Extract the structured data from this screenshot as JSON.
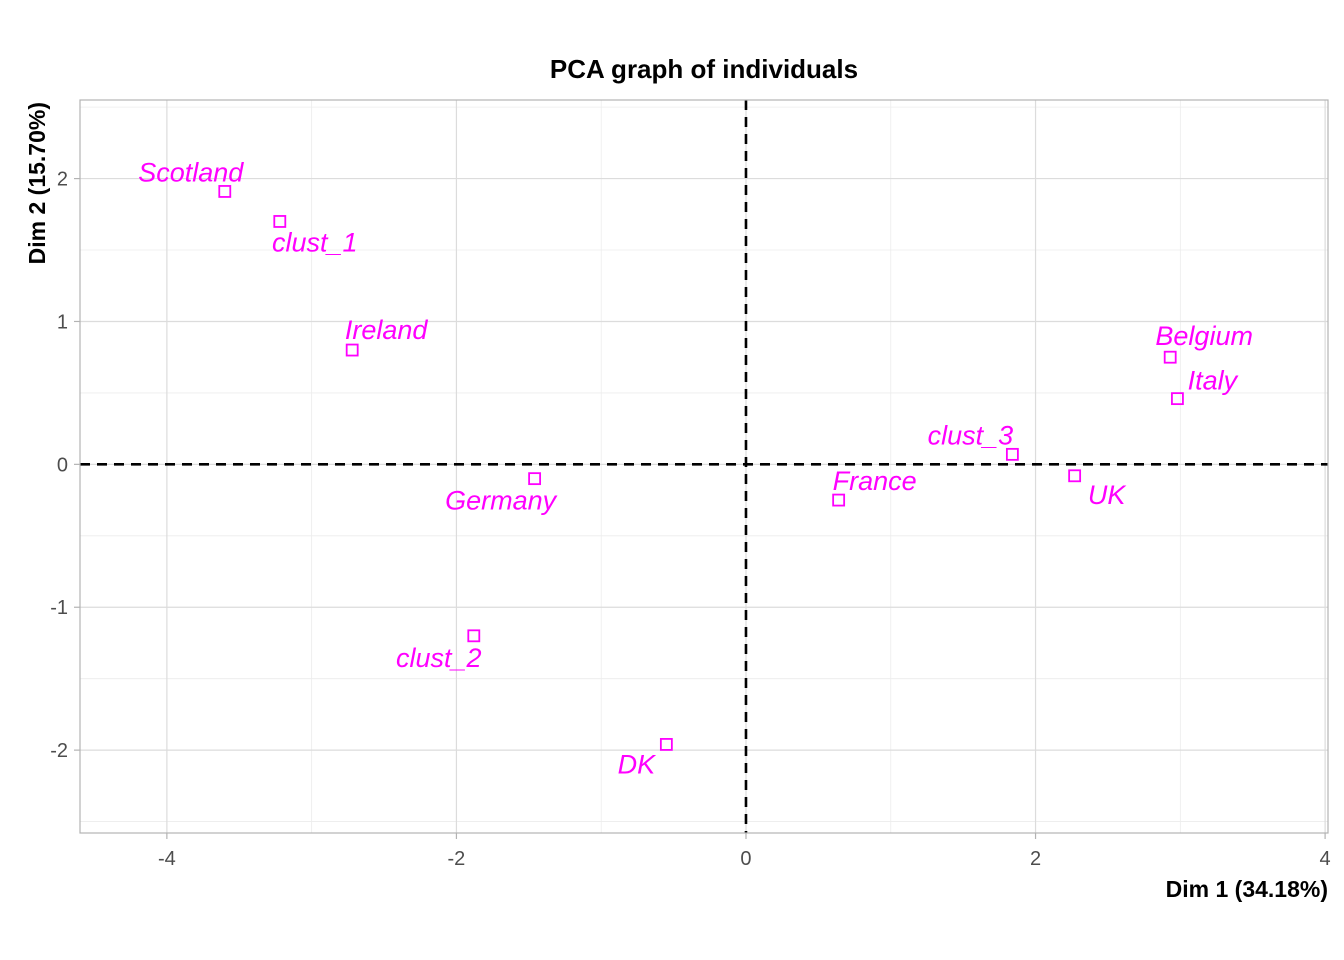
{
  "chart_data": {
    "type": "scatter",
    "title": "PCA graph of individuals",
    "xlabel": "Dim 1 (34.18%)",
    "ylabel": "Dim 2 (15.70%)",
    "xlim": [
      -4.6,
      4.02
    ],
    "ylim": [
      -2.58,
      2.55
    ],
    "x_ticks": [
      -4,
      -2,
      0,
      2,
      4
    ],
    "x_tick_labels": [
      "-4",
      "-2",
      "0",
      "2",
      "4"
    ],
    "y_ticks": [
      -2,
      -1,
      0,
      1,
      2
    ],
    "y_tick_labels": [
      "-2",
      "-1",
      "0",
      "1",
      "2"
    ],
    "grid": true,
    "reference_lines": {
      "x": 0,
      "y": 0,
      "style": "dashed"
    },
    "marker": "open-square",
    "point_color": "#ff00ff",
    "points": [
      {
        "label": "Scotland",
        "x": -3.6,
        "y": 1.91
      },
      {
        "label": "clust_1",
        "x": -3.22,
        "y": 1.7
      },
      {
        "label": "Ireland",
        "x": -2.72,
        "y": 0.8
      },
      {
        "label": "Germany",
        "x": -1.46,
        "y": -0.1
      },
      {
        "label": "clust_2",
        "x": -1.88,
        "y": -1.2
      },
      {
        "label": "DK",
        "x": -0.55,
        "y": -1.96
      },
      {
        "label": "France",
        "x": 0.64,
        "y": -0.25
      },
      {
        "label": "clust_3",
        "x": 1.84,
        "y": 0.07
      },
      {
        "label": "UK",
        "x": 2.27,
        "y": -0.08
      },
      {
        "label": "Belgium",
        "x": 2.93,
        "y": 0.75
      },
      {
        "label": "Italy",
        "x": 2.98,
        "y": 0.46
      }
    ]
  }
}
